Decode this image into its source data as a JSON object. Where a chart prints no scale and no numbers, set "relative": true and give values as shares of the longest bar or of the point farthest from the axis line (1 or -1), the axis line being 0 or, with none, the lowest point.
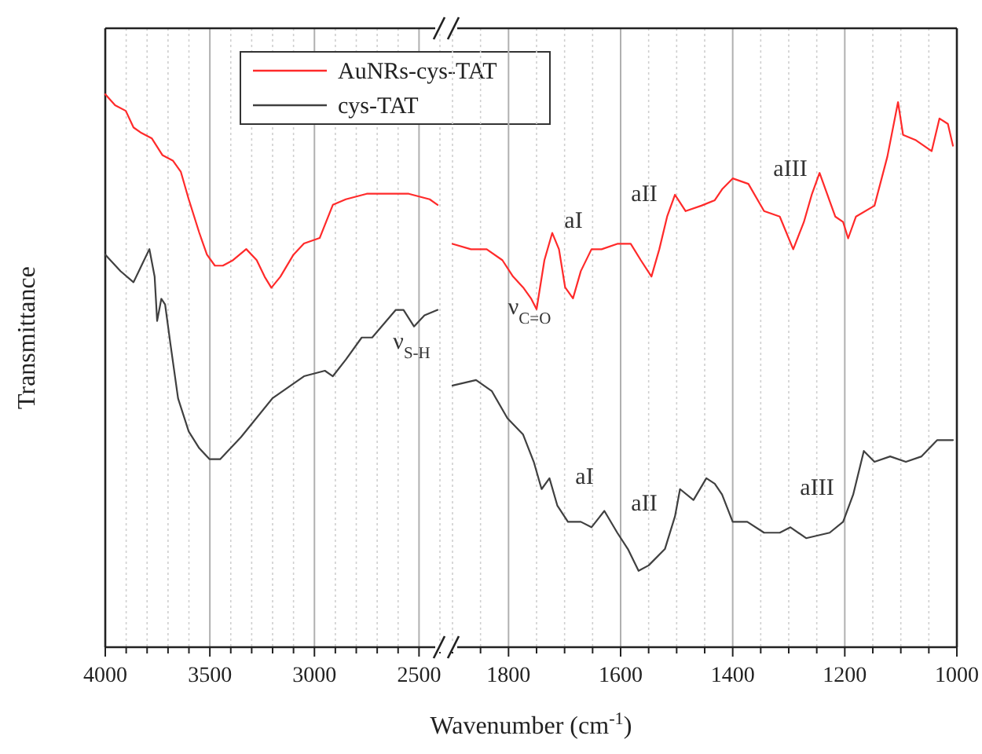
{
  "chart_data": [
    {
      "type": "line",
      "relative": true,
      "xlabel": "Wavenumber (cm$^{-1}$)",
      "ylabel": "Transmittance",
      "xlim": [
        4000,
        2400
      ],
      "xticks": [
        4000,
        {
          "value": 3900,
          "label": null
        },
        {
          "value": 3800,
          "label": null
        },
        {
          "value": 3700,
          "label": null
        },
        {
          "value": 3600,
          "label": null
        },
        3500,
        {
          "value": 3400,
          "label": null
        },
        {
          "value": 3300,
          "label": null
        },
        {
          "value": 3200,
          "label": null
        },
        {
          "value": 3100,
          "label": null
        },
        3000,
        {
          "value": 2900,
          "label": null
        },
        {
          "value": 2800,
          "label": null
        },
        {
          "value": 2700,
          "label": null
        },
        {
          "value": 2600,
          "label": null
        },
        2500,
        {
          "value": 2400,
          "label": null
        }
      ],
      "grid": "x",
      "legend": "top right",
      "series": [
        {
          "name": "AuNRs-cys-TAT",
          "color": "#ff2a2a",
          "x": [
            4000,
            3953,
            3902,
            3865,
            3827,
            3777,
            3727,
            3677,
            3639,
            3601,
            3551,
            3514,
            3476,
            3438,
            3389,
            3326,
            3276,
            3238,
            3206,
            3163,
            3100,
            3050,
            2975,
            2912,
            2850,
            2750,
            2649,
            2549,
            2449,
            2411
          ],
          "values": [
            1.0,
            0.98,
            0.97,
            0.94,
            0.93,
            0.92,
            0.89,
            0.88,
            0.86,
            0.81,
            0.75,
            0.71,
            0.69,
            0.69,
            0.7,
            0.72,
            0.7,
            0.67,
            0.65,
            0.67,
            0.71,
            0.73,
            0.74,
            0.8,
            0.81,
            0.82,
            0.82,
            0.82,
            0.81,
            0.8
          ]
        },
        {
          "name": "cys-TAT",
          "color": "#404040",
          "x": [
            4000,
            3927,
            3865,
            3827,
            3789,
            3764,
            3752,
            3732,
            3714,
            3689,
            3652,
            3601,
            3551,
            3501,
            3451,
            3351,
            3201,
            3050,
            2950,
            2912,
            2850,
            2774,
            2724,
            2611,
            2574,
            2524,
            2474,
            2411
          ],
          "values": [
            0.71,
            0.68,
            0.66,
            0.69,
            0.72,
            0.67,
            0.59,
            0.63,
            0.62,
            0.55,
            0.45,
            0.39,
            0.36,
            0.34,
            0.34,
            0.38,
            0.45,
            0.49,
            0.5,
            0.49,
            0.52,
            0.56,
            0.56,
            0.61,
            0.61,
            0.58,
            0.6,
            0.61
          ]
        }
      ],
      "annotations": [
        "ν$_{S-H}$"
      ]
    },
    {
      "type": "line",
      "relative": true,
      "xlim": [
        1900,
        1000
      ],
      "xticks": [
        {
          "value": 1900,
          "label": null
        },
        {
          "value": 1850,
          "label": null
        },
        1800,
        {
          "value": 1750,
          "label": null
        },
        {
          "value": 1700,
          "label": null
        },
        {
          "value": 1650,
          "label": null
        },
        1600,
        {
          "value": 1550,
          "label": null
        },
        {
          "value": 1500,
          "label": null
        },
        {
          "value": 1450,
          "label": null
        },
        1400,
        {
          "value": 1350,
          "label": null
        },
        {
          "value": 1300,
          "label": null
        },
        {
          "value": 1250,
          "label": null
        },
        1200,
        {
          "value": 1150,
          "label": null
        },
        {
          "value": 1100,
          "label": null
        },
        {
          "value": 1050,
          "label": null
        },
        1000
      ],
      "grid": "x",
      "series": [
        {
          "color": "#ff2a2a",
          "x": [
            1900,
            1867,
            1839,
            1811,
            1792,
            1774,
            1760,
            1750,
            1736,
            1722,
            1710,
            1699,
            1685,
            1671,
            1652,
            1634,
            1606,
            1582,
            1564,
            1545,
            1531,
            1517,
            1503,
            1484,
            1456,
            1432,
            1419,
            1400,
            1372,
            1344,
            1316,
            1292,
            1273,
            1259,
            1245,
            1231,
            1217,
            1203,
            1194,
            1180,
            1147,
            1124,
            1105,
            1096,
            1073,
            1045,
            1031,
            1016,
            1007
          ],
          "values": [
            0.74,
            0.73,
            0.73,
            0.71,
            0.68,
            0.66,
            0.64,
            0.62,
            0.71,
            0.76,
            0.73,
            0.66,
            0.64,
            0.69,
            0.73,
            0.73,
            0.74,
            0.74,
            0.71,
            0.68,
            0.73,
            0.79,
            0.83,
            0.8,
            0.81,
            0.82,
            0.84,
            0.86,
            0.85,
            0.8,
            0.79,
            0.73,
            0.78,
            0.83,
            0.87,
            0.83,
            0.79,
            0.78,
            0.75,
            0.79,
            0.81,
            0.9,
            1.0,
            0.94,
            0.93,
            0.91,
            0.97,
            0.96,
            0.92
          ]
        },
        {
          "color": "#404040",
          "x": [
            1900,
            1858,
            1830,
            1802,
            1774,
            1755,
            1741,
            1727,
            1713,
            1694,
            1671,
            1652,
            1629,
            1606,
            1587,
            1568,
            1550,
            1521,
            1503,
            1494,
            1470,
            1447,
            1432,
            1419,
            1400,
            1374,
            1344,
            1316,
            1297,
            1269,
            1227,
            1203,
            1185,
            1166,
            1147,
            1119,
            1091,
            1063,
            1035,
            1016,
            1007
          ],
          "values": [
            0.48,
            0.49,
            0.47,
            0.42,
            0.39,
            0.34,
            0.29,
            0.31,
            0.26,
            0.23,
            0.23,
            0.22,
            0.25,
            0.21,
            0.18,
            0.14,
            0.15,
            0.18,
            0.24,
            0.29,
            0.27,
            0.31,
            0.3,
            0.28,
            0.23,
            0.23,
            0.21,
            0.21,
            0.22,
            0.2,
            0.21,
            0.23,
            0.28,
            0.36,
            0.34,
            0.35,
            0.34,
            0.35,
            0.38,
            0.38,
            0.38
          ]
        }
      ],
      "annotations": [
        "ν$_{C=O}$",
        "aI",
        "aII",
        "aIII",
        "aI",
        "aII",
        "aIII"
      ]
    }
  ]
}
